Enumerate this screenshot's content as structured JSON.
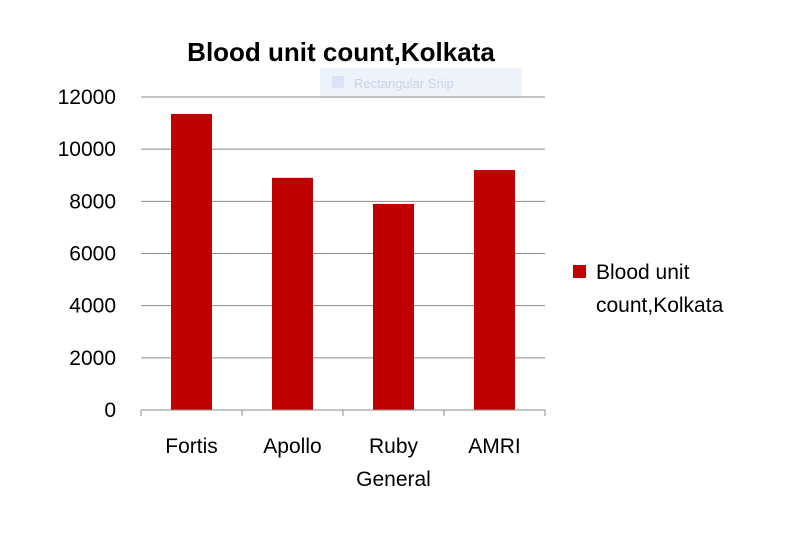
{
  "chart_data": {
    "type": "bar",
    "title": "Blood unit count,Kolkata",
    "categories": [
      [
        "Fortis"
      ],
      [
        "Apollo"
      ],
      [
        "Ruby",
        "General"
      ],
      [
        "AMRI"
      ]
    ],
    "series": [
      {
        "name": "Blood unit count,Kolkata",
        "values": [
          11350,
          8900,
          7900,
          9200
        ],
        "color": "#c00000"
      }
    ],
    "ylim": [
      0,
      12000
    ],
    "yticks": [
      0,
      2000,
      4000,
      6000,
      8000,
      10000,
      12000
    ],
    "grid": true,
    "legend_position": "right"
  },
  "overlay": {
    "ghost_label": "Rectangular Snip"
  },
  "colors": {
    "bar": "#c00000",
    "grid": "#8c8c8c",
    "axis": "#8c8c8c"
  }
}
